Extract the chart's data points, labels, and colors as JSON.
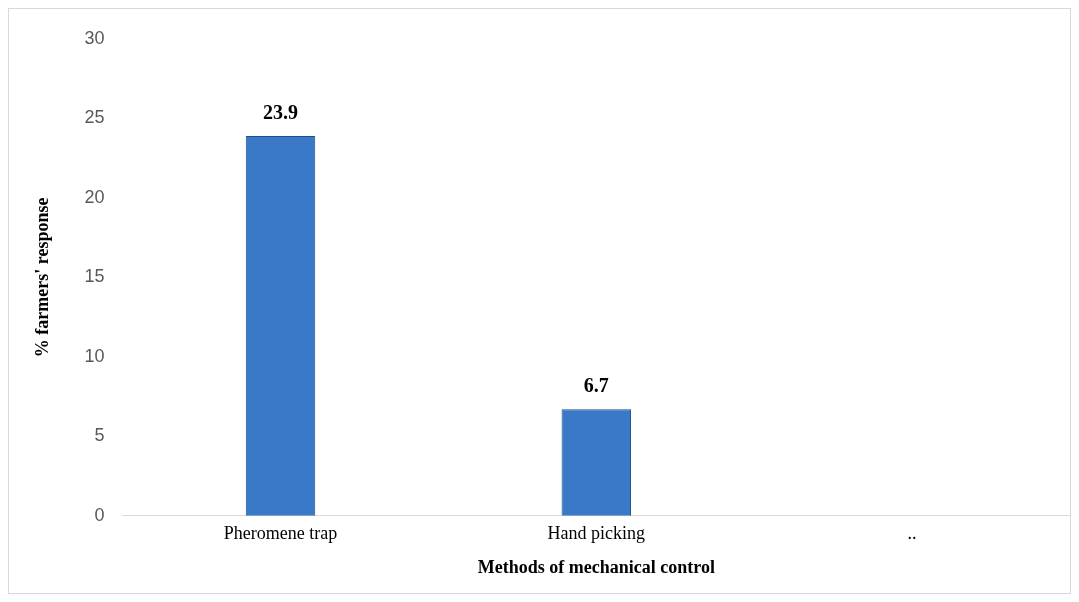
{
  "chart_data": {
    "type": "bar",
    "xlabel": "Methods of mechanical control",
    "ylabel": "% farmers' response",
    "categories": [
      "Pheromene trap",
      "Hand picking",
      ".."
    ],
    "values": [
      23.9,
      6.7,
      null
    ],
    "color": "#3a78c8",
    "ylim": [
      0,
      30
    ],
    "yticks": [
      0,
      5,
      10,
      15,
      20,
      25,
      30
    ],
    "grid": false,
    "data_labels": true
  }
}
